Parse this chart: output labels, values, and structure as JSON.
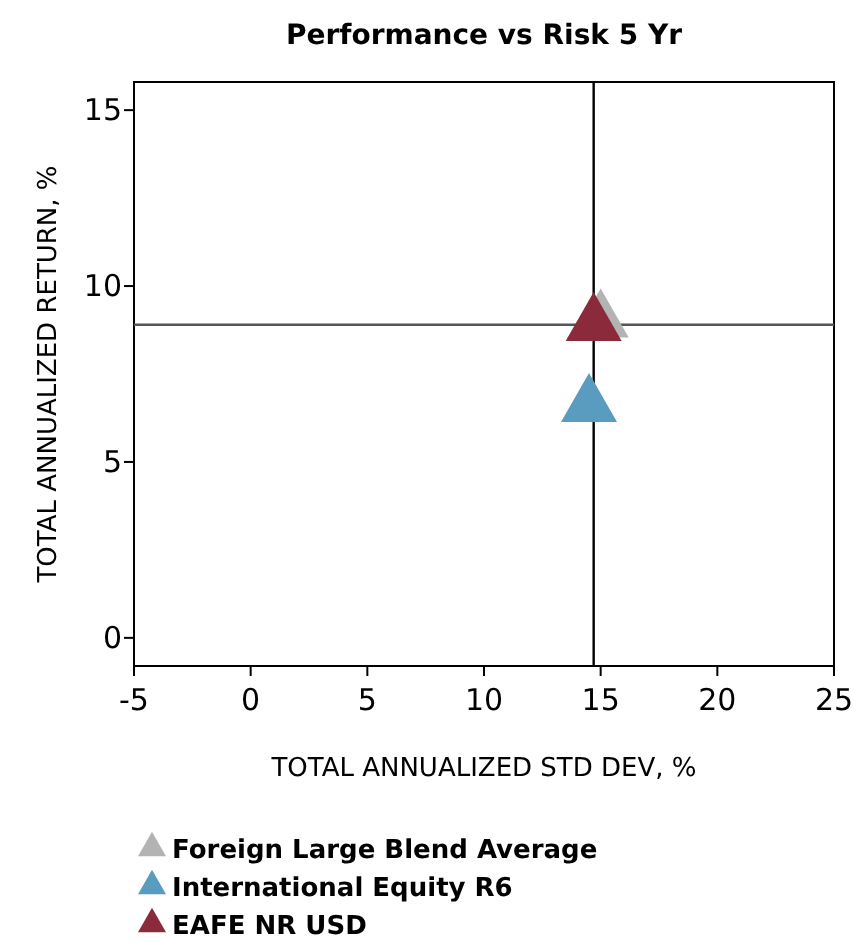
{
  "chart_data": {
    "type": "scatter",
    "title": "Performance vs Risk 5 Yr",
    "xlabel": "TOTAL ANNUALIZED STD DEV, %",
    "ylabel": "TOTAL ANNUALIZED RETURN, %",
    "series": [
      {
        "name": "Foreign Large Blend Average",
        "color": "#b3b3b3",
        "x": [
          15.0
        ],
        "values": [
          9.0
        ]
      },
      {
        "name": "International Equity R6",
        "color": "#5a9bc0",
        "x": [
          14.5
        ],
        "values": [
          6.6
        ]
      },
      {
        "name": "EAFE NR USD",
        "color": "#8a2a3b",
        "x": [
          14.7
        ],
        "values": [
          8.9
        ]
      }
    ],
    "xlim": [
      -5,
      25
    ],
    "xticks": [
      -5,
      0,
      5,
      10,
      15,
      20,
      25
    ],
    "ylim": [
      -0.8,
      15.8
    ],
    "yticks": [
      0,
      5,
      10,
      15
    ],
    "ref_lines": [
      {
        "axis": "x",
        "value": 14.7,
        "color": "#000000"
      },
      {
        "axis": "y",
        "value": 8.9,
        "color": "#555555"
      }
    ],
    "marker": "triangle",
    "legend": "bottom left",
    "grid": false
  }
}
